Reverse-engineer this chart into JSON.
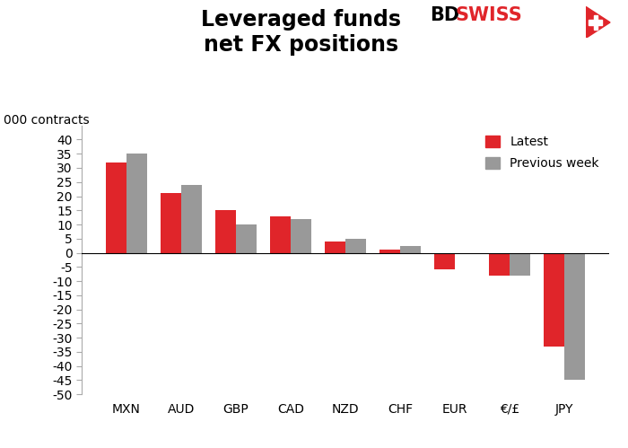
{
  "categories": [
    "MXN",
    "AUD",
    "GBP",
    "CAD",
    "NZD",
    "CHF",
    "EUR",
    "€/£",
    "JPY"
  ],
  "latest": [
    32,
    21,
    15,
    13,
    4,
    1,
    -6,
    -8,
    -33
  ],
  "previous_week": [
    35,
    24,
    10,
    12,
    5,
    2.5,
    0,
    -8,
    -45
  ],
  "latest_color": "#e0252a",
  "previous_color": "#999999",
  "title_line1": "Leveraged funds",
  "title_line2": "net FX positions",
  "ylabel_text": "000 contracts",
  "ylim": [
    -50,
    45
  ],
  "yticks": [
    -50,
    -45,
    -40,
    -35,
    -30,
    -25,
    -20,
    -15,
    -10,
    -5,
    0,
    5,
    10,
    15,
    20,
    25,
    30,
    35,
    40
  ],
  "legend_latest": "Latest",
  "legend_previous": "Previous week",
  "background_color": "#ffffff",
  "title_fontsize": 17,
  "label_fontsize": 10,
  "tick_fontsize": 10,
  "bar_width": 0.38
}
